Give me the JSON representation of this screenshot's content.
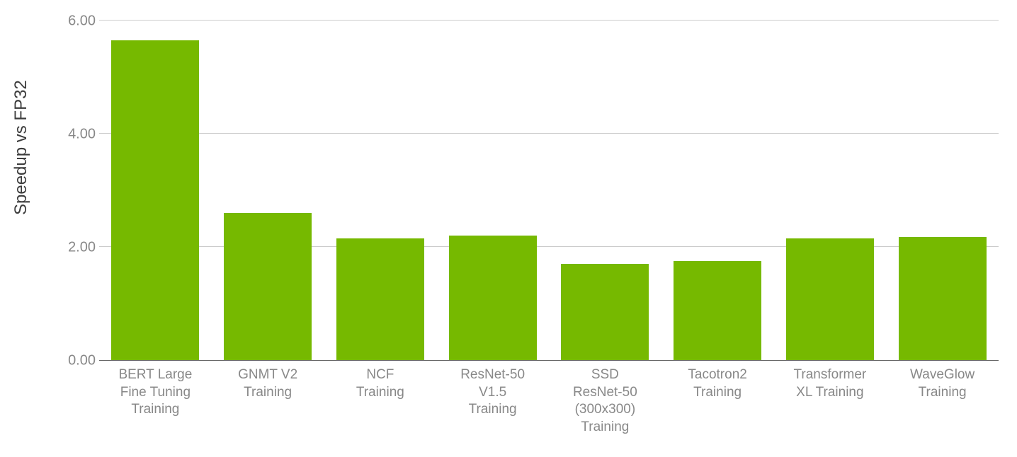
{
  "chart": {
    "type": "bar",
    "ylabel": "Speedup vs FP32",
    "ylabel_fontsize": 24,
    "ylabel_color": "#3c3c3c",
    "background_color": "#ffffff",
    "grid_color": "#cccccc",
    "axis_color": "#666666",
    "tick_color": "#888888",
    "tick_fontsize": 20,
    "xlabel_fontsize": 19,
    "xlabel_color": "#888888",
    "ylim": [
      0,
      6
    ],
    "yticks": [
      0.0,
      2.0,
      4.0,
      6.0
    ],
    "ytick_labels": [
      "0.00",
      "2.00",
      "4.00",
      "6.00"
    ],
    "bar_color": "#76b900",
    "bar_width": 0.78,
    "categories": [
      "BERT Large\nFine Tuning\nTraining",
      "GNMT V2\nTraining",
      "NCF\nTraining",
      "ResNet-50\nV1.5\nTraining",
      "SSD\nResNet-50\n(300x300)\nTraining",
      "Tacotron2\nTraining",
      "Transformer\nXL Training",
      "WaveGlow\nTraining"
    ],
    "values": [
      5.65,
      2.6,
      2.15,
      2.2,
      1.7,
      1.75,
      2.15,
      2.18
    ]
  }
}
